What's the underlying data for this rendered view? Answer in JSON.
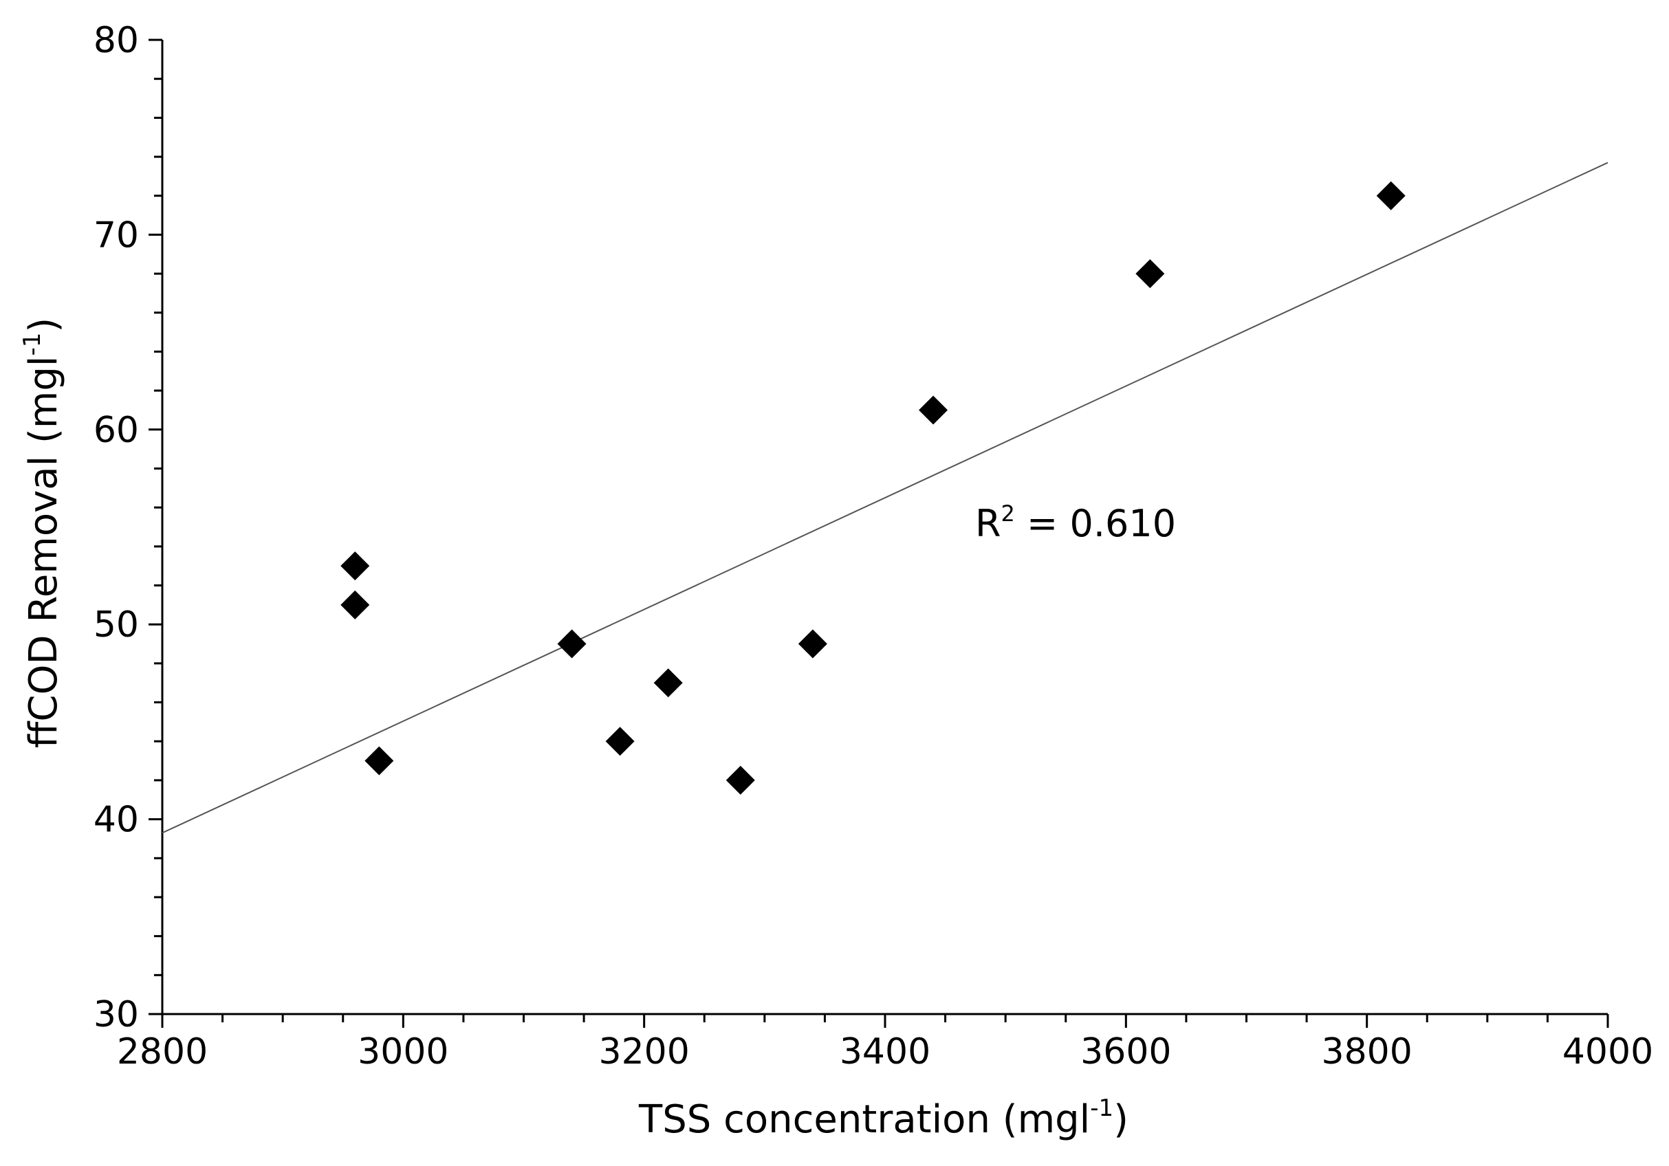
{
  "chart_data": {
    "type": "scatter",
    "title": "",
    "xlabel": "TSS concentration (mgl",
    "xlabel_sup": "-1",
    "xlabel_end": ")",
    "ylabel": "ffCOD Removal (mgl",
    "ylabel_sup": "-1",
    "ylabel_end": ")",
    "xlim": [
      2800,
      4000
    ],
    "ylim": [
      30,
      80
    ],
    "x_ticks": [
      "2800",
      "3000",
      "3200",
      "3400",
      "3600",
      "3800",
      "4000"
    ],
    "y_ticks": [
      "30",
      "40",
      "50",
      "60",
      "70",
      "80"
    ],
    "grid": false,
    "marker": "diamond",
    "marker_color": "#000000",
    "points": [
      {
        "x": 2960,
        "y": 53
      },
      {
        "x": 2960,
        "y": 51
      },
      {
        "x": 2980,
        "y": 43
      },
      {
        "x": 3140,
        "y": 49
      },
      {
        "x": 3180,
        "y": 44
      },
      {
        "x": 3220,
        "y": 47
      },
      {
        "x": 3280,
        "y": 42
      },
      {
        "x": 3340,
        "y": 49
      },
      {
        "x": 3440,
        "y": 61
      },
      {
        "x": 3620,
        "y": 68
      },
      {
        "x": 3820,
        "y": 72
      }
    ],
    "trendline": {
      "type": "linear",
      "start": {
        "x": 2800,
        "y": 39.3
      },
      "end": {
        "x": 4000,
        "y": 73.7
      },
      "color": "#555555"
    },
    "annotation": {
      "text_prefix": "R",
      "text_sup": "2",
      "text_suffix": " = 0.610"
    }
  }
}
